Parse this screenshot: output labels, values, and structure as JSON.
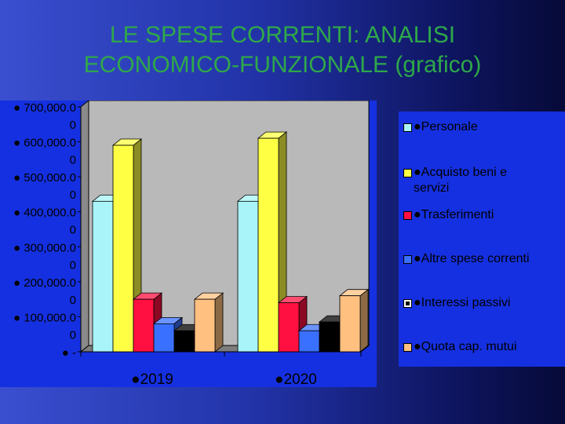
{
  "slide": {
    "title_line1": "LE SPESE CORRENTI: ANALISI",
    "title_line2": "ECONOMICO-FUNZIONALE (grafico)",
    "background": "#1a2aa0",
    "title_color": "#2ea84a"
  },
  "chart_data": {
    "type": "bar",
    "categories": [
      "●2019",
      "●2020"
    ],
    "ylim": [
      0,
      700000
    ],
    "yticks": [
      {
        "value": 700000,
        "label": "● 700,000.0"
      },
      {
        "value": 600000,
        "label": "● 600,000.0"
      },
      {
        "value": 500000,
        "label": "● 500,000.0"
      },
      {
        "value": 400000,
        "label": "● 400,000.0"
      },
      {
        "value": 300000,
        "label": "● 300,000.0"
      },
      {
        "value": 200000,
        "label": "● 200,000.0"
      },
      {
        "value": 100000,
        "label": "● 100,000.0"
      },
      {
        "value": 0,
        "label": "● -"
      }
    ],
    "series": [
      {
        "name": "●Personale",
        "color": "#a8f4f8",
        "values": [
          430000,
          430000
        ]
      },
      {
        "name": "●Acquisto beni e servizi",
        "color": "#ffff44",
        "values": [
          590000,
          610000
        ]
      },
      {
        "name": "●Trasferimenti",
        "color": "#ff1040",
        "values": [
          150000,
          140000
        ]
      },
      {
        "name": "●Altre spese correnti",
        "color": "#3a70ff",
        "values": [
          80000,
          60000
        ]
      },
      {
        "name": "●Interessi passivi",
        "color": "#000000",
        "values": [
          60000,
          85000
        ]
      },
      {
        "name": "●Quota cap. mutui",
        "color": "#ffc080",
        "values": [
          150000,
          160000
        ]
      }
    ],
    "legend_position": "right",
    "style": "3d-clustered-column"
  }
}
